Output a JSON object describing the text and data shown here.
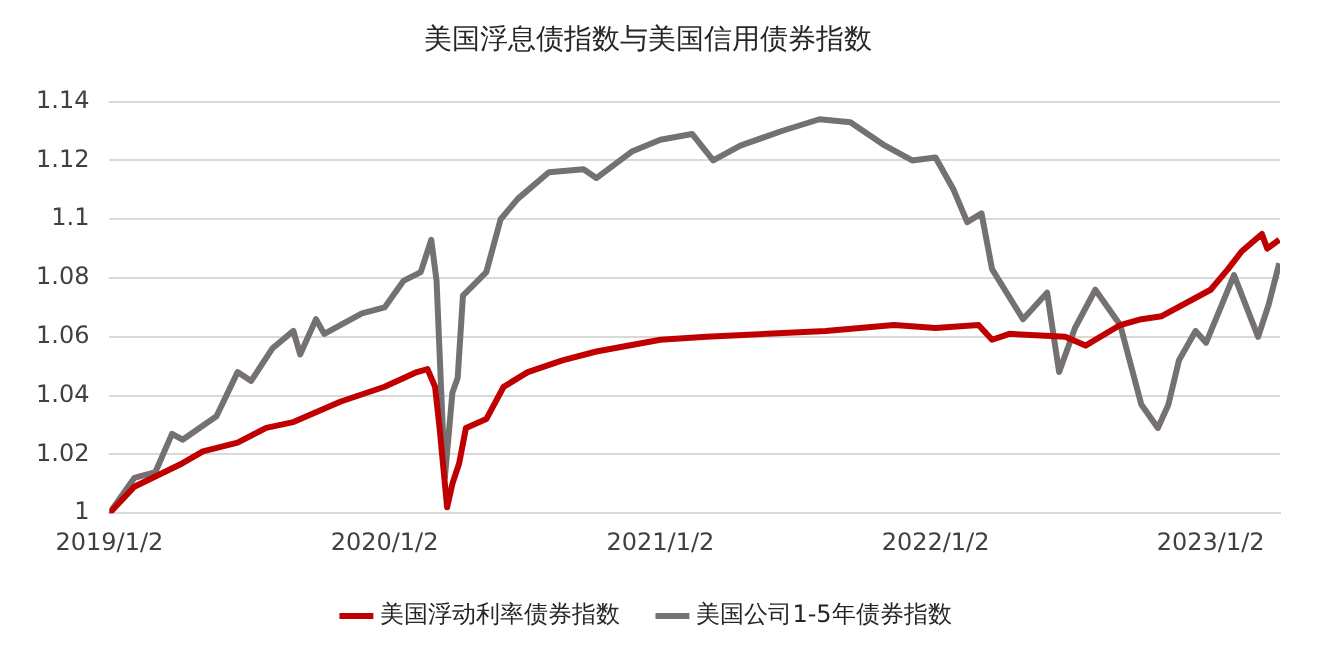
{
  "chart_data": {
    "type": "line",
    "title": "美国浮息债指数与美国信用债券指数",
    "xlim": [
      "2019-01-02",
      "2023-04-04"
    ],
    "xticks": [
      {
        "value": "2019-01-02",
        "label": "2019/1/2"
      },
      {
        "value": "2020-01-02",
        "label": "2020/1/2"
      },
      {
        "value": "2021-01-02",
        "label": "2021/1/2"
      },
      {
        "value": "2022-01-02",
        "label": "2022/1/2"
      },
      {
        "value": "2023-01-02",
        "label": "2023/1/2"
      }
    ],
    "ylim": [
      1,
      1.14
    ],
    "yticks": [
      1,
      1.02,
      1.04,
      1.06,
      1.08,
      1.1,
      1.12,
      1.14
    ],
    "grid": "y",
    "legend": "bottom",
    "marker": "none",
    "line_style": "solid",
    "series": [
      {
        "name": "美国浮动利率债券指数",
        "color": "#c00000",
        "x": [
          "2019-01-02",
          "2019-02-04",
          "2019-04-09",
          "2019-05-06",
          "2019-06-21",
          "2019-07-29",
          "2019-09-03",
          "2019-11-05",
          "2020-01-02",
          "2020-02-14",
          "2020-02-28",
          "2020-03-09",
          "2020-03-15",
          "2020-03-25",
          "2020-04-01",
          "2020-04-10",
          "2020-04-19",
          "2020-05-16",
          "2020-06-08",
          "2020-07-10",
          "2020-08-25",
          "2020-10-09",
          "2021-01-02",
          "2021-03-04",
          "2021-08-09",
          "2021-11-08",
          "2022-01-02",
          "2022-02-28",
          "2022-03-18",
          "2022-04-10",
          "2022-06-23",
          "2022-07-20",
          "2022-09-04",
          "2022-10-02",
          "2022-10-29",
          "2023-01-02",
          "2023-01-25",
          "2023-02-12",
          "2023-03-11",
          "2023-03-18",
          "2023-04-03"
        ],
        "values": [
          1.0,
          1.009,
          1.017,
          1.021,
          1.024,
          1.029,
          1.031,
          1.038,
          1.043,
          1.048,
          1.049,
          1.043,
          1.029,
          1.002,
          1.01,
          1.017,
          1.029,
          1.032,
          1.043,
          1.048,
          1.052,
          1.055,
          1.059,
          1.06,
          1.062,
          1.064,
          1.063,
          1.064,
          1.059,
          1.061,
          1.06,
          1.057,
          1.064,
          1.066,
          1.067,
          1.076,
          1.083,
          1.089,
          1.095,
          1.09,
          1.093
        ]
      },
      {
        "name": "美国公司1-5年债券指数",
        "color": "#757171",
        "x": [
          "2019-01-02",
          "2019-02-04",
          "2019-03-04",
          "2019-03-26",
          "2019-04-09",
          "2019-05-24",
          "2019-06-21",
          "2019-07-09",
          "2019-08-06",
          "2019-09-03",
          "2019-09-12",
          "2019-10-03",
          "2019-10-14",
          "2019-12-03",
          "2020-01-02",
          "2020-01-27",
          "2020-02-19",
          "2020-03-04",
          "2020-03-11",
          "2020-03-22",
          "2020-04-01",
          "2020-04-08",
          "2020-04-15",
          "2020-05-16",
          "2020-06-04",
          "2020-06-27",
          "2020-08-07",
          "2020-09-22",
          "2020-10-09",
          "2020-11-25",
          "2021-01-02",
          "2021-02-13",
          "2021-03-13",
          "2021-04-18",
          "2021-06-12",
          "2021-08-01",
          "2021-09-11",
          "2021-10-27",
          "2021-12-02",
          "2022-01-02",
          "2022-01-26",
          "2022-02-13",
          "2022-03-04",
          "2022-03-18",
          "2022-04-28",
          "2022-05-30",
          "2022-06-15",
          "2022-07-06",
          "2022-08-02",
          "2022-09-04",
          "2022-10-02",
          "2022-10-24",
          "2022-11-07",
          "2022-11-21",
          "2022-12-13",
          "2022-12-27",
          "2023-02-02",
          "2023-03-06",
          "2023-03-20",
          "2023-04-03"
        ],
        "values": [
          1.0,
          1.012,
          1.014,
          1.027,
          1.025,
          1.033,
          1.048,
          1.045,
          1.056,
          1.062,
          1.054,
          1.066,
          1.061,
          1.068,
          1.07,
          1.079,
          1.082,
          1.093,
          1.079,
          1.012,
          1.041,
          1.046,
          1.074,
          1.082,
          1.1,
          1.107,
          1.116,
          1.117,
          1.114,
          1.123,
          1.127,
          1.129,
          1.12,
          1.125,
          1.13,
          1.134,
          1.133,
          1.125,
          1.12,
          1.121,
          1.11,
          1.099,
          1.102,
          1.083,
          1.066,
          1.075,
          1.048,
          1.063,
          1.076,
          1.064,
          1.037,
          1.029,
          1.037,
          1.052,
          1.062,
          1.058,
          1.081,
          1.06,
          1.071,
          1.085
        ]
      }
    ]
  }
}
